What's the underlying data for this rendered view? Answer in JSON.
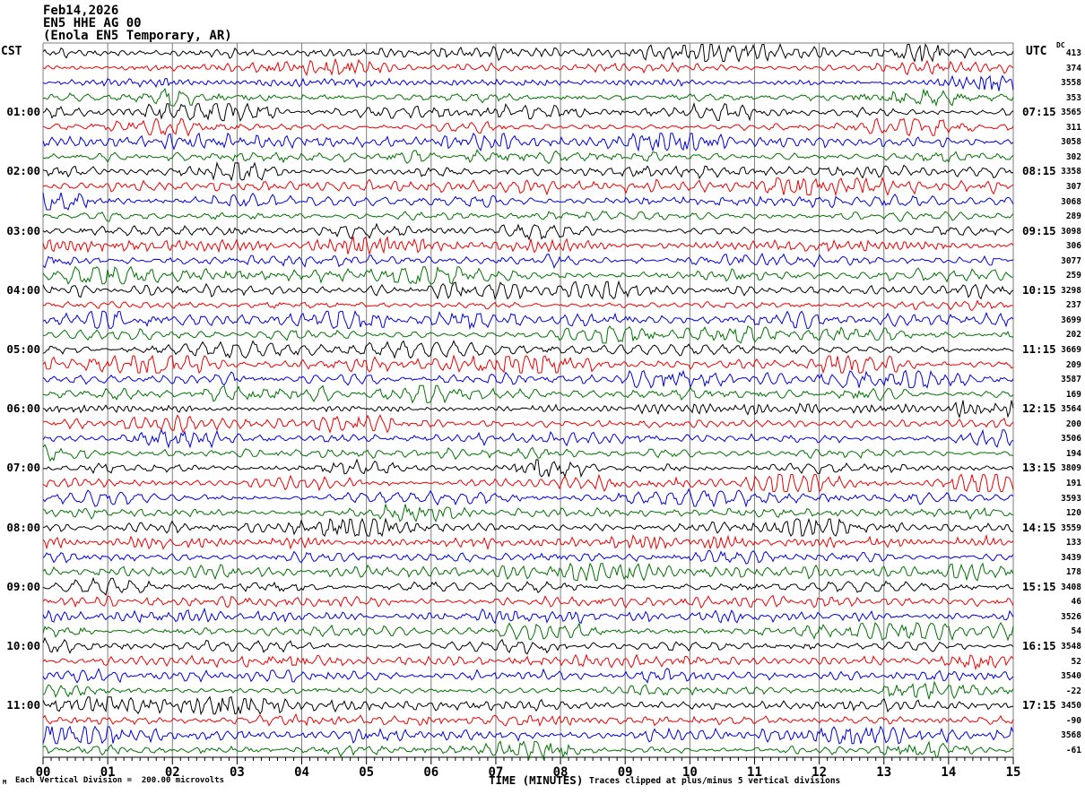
{
  "header": {
    "date": "Feb14,2026",
    "station": "EN5 HHE AG 00",
    "region": "(Enola EN5 Temporary, AR)"
  },
  "left_axis": {
    "header": "CST"
  },
  "right_axis": {
    "header": "UTC",
    "dc_header": "DC"
  },
  "x_axis": {
    "tick_labels": [
      "00",
      "01",
      "02",
      "03",
      "04",
      "05",
      "06",
      "07",
      "08",
      "09",
      "10",
      "11",
      "12",
      "13",
      "14",
      "15"
    ],
    "minor_ticks_per_minute": 8
  },
  "footer": {
    "left_mark": "M",
    "scale_note": "Each Vertical Division =  200.00 microvolts",
    "time_axis_label": "TIME (MINUTES)",
    "clip_note": "Traces clipped at plus/minus 5 vertical divisions"
  },
  "palette": {
    "black": "#000000",
    "red": "#ee0000",
    "blue": "#0000dd",
    "green": "#007300",
    "grid": "#7d7d7d",
    "axis": "#000000"
  },
  "chart_data": {
    "type": "line",
    "title": "EN5 HHE AG 00 helicorder — (Enola EN5 Temporary, AR) — Feb14,2026",
    "xlabel": "TIME (MINUTES)",
    "x_range_minutes": [
      0,
      15
    ],
    "row_duration_minutes": 15,
    "trace_color_cycle": [
      "black",
      "red",
      "blue",
      "green"
    ],
    "clip_divisions": 5,
    "microvolts_per_division": 200.0,
    "rows": [
      {
        "color": "black",
        "cst": "",
        "utc": "",
        "dc": "413"
      },
      {
        "color": "red",
        "cst": "",
        "utc": "",
        "dc": "374"
      },
      {
        "color": "blue",
        "cst": "",
        "utc": "",
        "dc": "3558"
      },
      {
        "color": "green",
        "cst": "",
        "utc": "",
        "dc": "353"
      },
      {
        "color": "black",
        "cst": "01:00",
        "utc": "07:15",
        "dc": "3565"
      },
      {
        "color": "red",
        "cst": "",
        "utc": "",
        "dc": "311"
      },
      {
        "color": "blue",
        "cst": "",
        "utc": "",
        "dc": "3058"
      },
      {
        "color": "green",
        "cst": "",
        "utc": "",
        "dc": "302"
      },
      {
        "color": "black",
        "cst": "02:00",
        "utc": "08:15",
        "dc": "3358"
      },
      {
        "color": "red",
        "cst": "",
        "utc": "",
        "dc": "307"
      },
      {
        "color": "blue",
        "cst": "",
        "utc": "",
        "dc": "3068"
      },
      {
        "color": "green",
        "cst": "",
        "utc": "",
        "dc": "289"
      },
      {
        "color": "black",
        "cst": "03:00",
        "utc": "09:15",
        "dc": "3098"
      },
      {
        "color": "red",
        "cst": "",
        "utc": "",
        "dc": "306"
      },
      {
        "color": "blue",
        "cst": "",
        "utc": "",
        "dc": "3077"
      },
      {
        "color": "green",
        "cst": "",
        "utc": "",
        "dc": "259"
      },
      {
        "color": "black",
        "cst": "04:00",
        "utc": "10:15",
        "dc": "3298"
      },
      {
        "color": "red",
        "cst": "",
        "utc": "",
        "dc": "237"
      },
      {
        "color": "blue",
        "cst": "",
        "utc": "",
        "dc": "3699"
      },
      {
        "color": "green",
        "cst": "",
        "utc": "",
        "dc": "202"
      },
      {
        "color": "black",
        "cst": "05:00",
        "utc": "11:15",
        "dc": "3669"
      },
      {
        "color": "red",
        "cst": "",
        "utc": "",
        "dc": "209"
      },
      {
        "color": "blue",
        "cst": "",
        "utc": "",
        "dc": "3587"
      },
      {
        "color": "green",
        "cst": "",
        "utc": "",
        "dc": "169"
      },
      {
        "color": "black",
        "cst": "06:00",
        "utc": "12:15",
        "dc": "3564"
      },
      {
        "color": "red",
        "cst": "",
        "utc": "",
        "dc": "200"
      },
      {
        "color": "blue",
        "cst": "",
        "utc": "",
        "dc": "3506"
      },
      {
        "color": "green",
        "cst": "",
        "utc": "",
        "dc": "194"
      },
      {
        "color": "black",
        "cst": "07:00",
        "utc": "13:15",
        "dc": "3809"
      },
      {
        "color": "red",
        "cst": "",
        "utc": "",
        "dc": "191"
      },
      {
        "color": "blue",
        "cst": "",
        "utc": "",
        "dc": "3593"
      },
      {
        "color": "green",
        "cst": "",
        "utc": "",
        "dc": "120"
      },
      {
        "color": "black",
        "cst": "08:00",
        "utc": "14:15",
        "dc": "3559"
      },
      {
        "color": "red",
        "cst": "",
        "utc": "",
        "dc": "133"
      },
      {
        "color": "blue",
        "cst": "",
        "utc": "",
        "dc": "3439"
      },
      {
        "color": "green",
        "cst": "",
        "utc": "",
        "dc": "178"
      },
      {
        "color": "black",
        "cst": "09:00",
        "utc": "15:15",
        "dc": "3408"
      },
      {
        "color": "red",
        "cst": "",
        "utc": "",
        "dc": "46"
      },
      {
        "color": "blue",
        "cst": "",
        "utc": "",
        "dc": "3526"
      },
      {
        "color": "green",
        "cst": "",
        "utc": "",
        "dc": "54"
      },
      {
        "color": "black",
        "cst": "10:00",
        "utc": "16:15",
        "dc": "3548"
      },
      {
        "color": "red",
        "cst": "",
        "utc": "",
        "dc": "52"
      },
      {
        "color": "blue",
        "cst": "",
        "utc": "",
        "dc": "3540"
      },
      {
        "color": "green",
        "cst": "",
        "utc": "",
        "dc": "-22"
      },
      {
        "color": "black",
        "cst": "11:00",
        "utc": "17:15",
        "dc": "3450"
      },
      {
        "color": "red",
        "cst": "",
        "utc": "",
        "dc": "-90"
      },
      {
        "color": "blue",
        "cst": "",
        "utc": "",
        "dc": "3568"
      },
      {
        "color": "green",
        "cst": "",
        "utc": "",
        "dc": "-61"
      }
    ]
  }
}
